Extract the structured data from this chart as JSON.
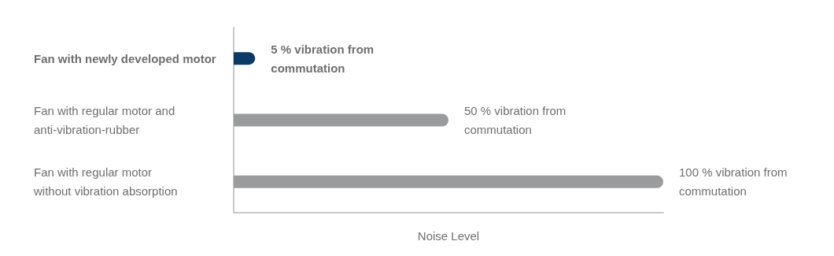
{
  "chart_data": {
    "type": "bar",
    "orientation": "horizontal",
    "xlabel": "Noise Level",
    "categories": [
      "Fan with newly developed motor",
      "Fan with regular motor and anti-vibration-rubber",
      "Fan with regular motor without vibration absorption"
    ],
    "values": [
      5,
      50,
      100
    ],
    "colors": [
      "#0b3a66",
      "#9a9b9d",
      "#9a9b9d"
    ],
    "value_labels": [
      "5 % vibration from commutation",
      "50 % vibration from commutation",
      "100 % vibration from commutation"
    ],
    "xlim": [
      0,
      100
    ],
    "tick_labels": "y",
    "grid": false
  }
}
